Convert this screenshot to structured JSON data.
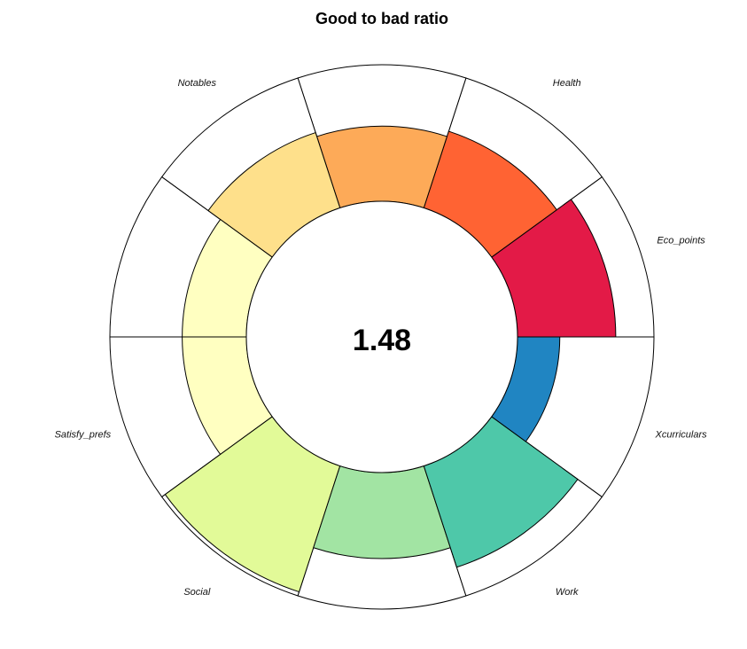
{
  "chart_data": {
    "type": "pie",
    "subtype": "circular-bar",
    "title": "Good to bad ratio",
    "center_value": "1.48",
    "value_max": 1.0,
    "categories": [
      "Eco_points",
      "Health",
      "",
      "Notables",
      "",
      "Satisfy_prefs",
      "Social",
      "",
      "Work",
      "Xcurriculars"
    ],
    "values": [
      0.72,
      0.59,
      0.55,
      0.58,
      0.47,
      0.47,
      0.97,
      0.63,
      0.78,
      0.31
    ],
    "colors": [
      "#E31A47",
      "#FF6333",
      "#FDAA58",
      "#FEE08B",
      "#FFFFC1",
      "#FFFFC1",
      "#E2FA98",
      "#A2E4A3",
      "#4EC8A9",
      "#2085C2"
    ],
    "outline_color": "#000000",
    "grid": false,
    "legend": "none"
  }
}
